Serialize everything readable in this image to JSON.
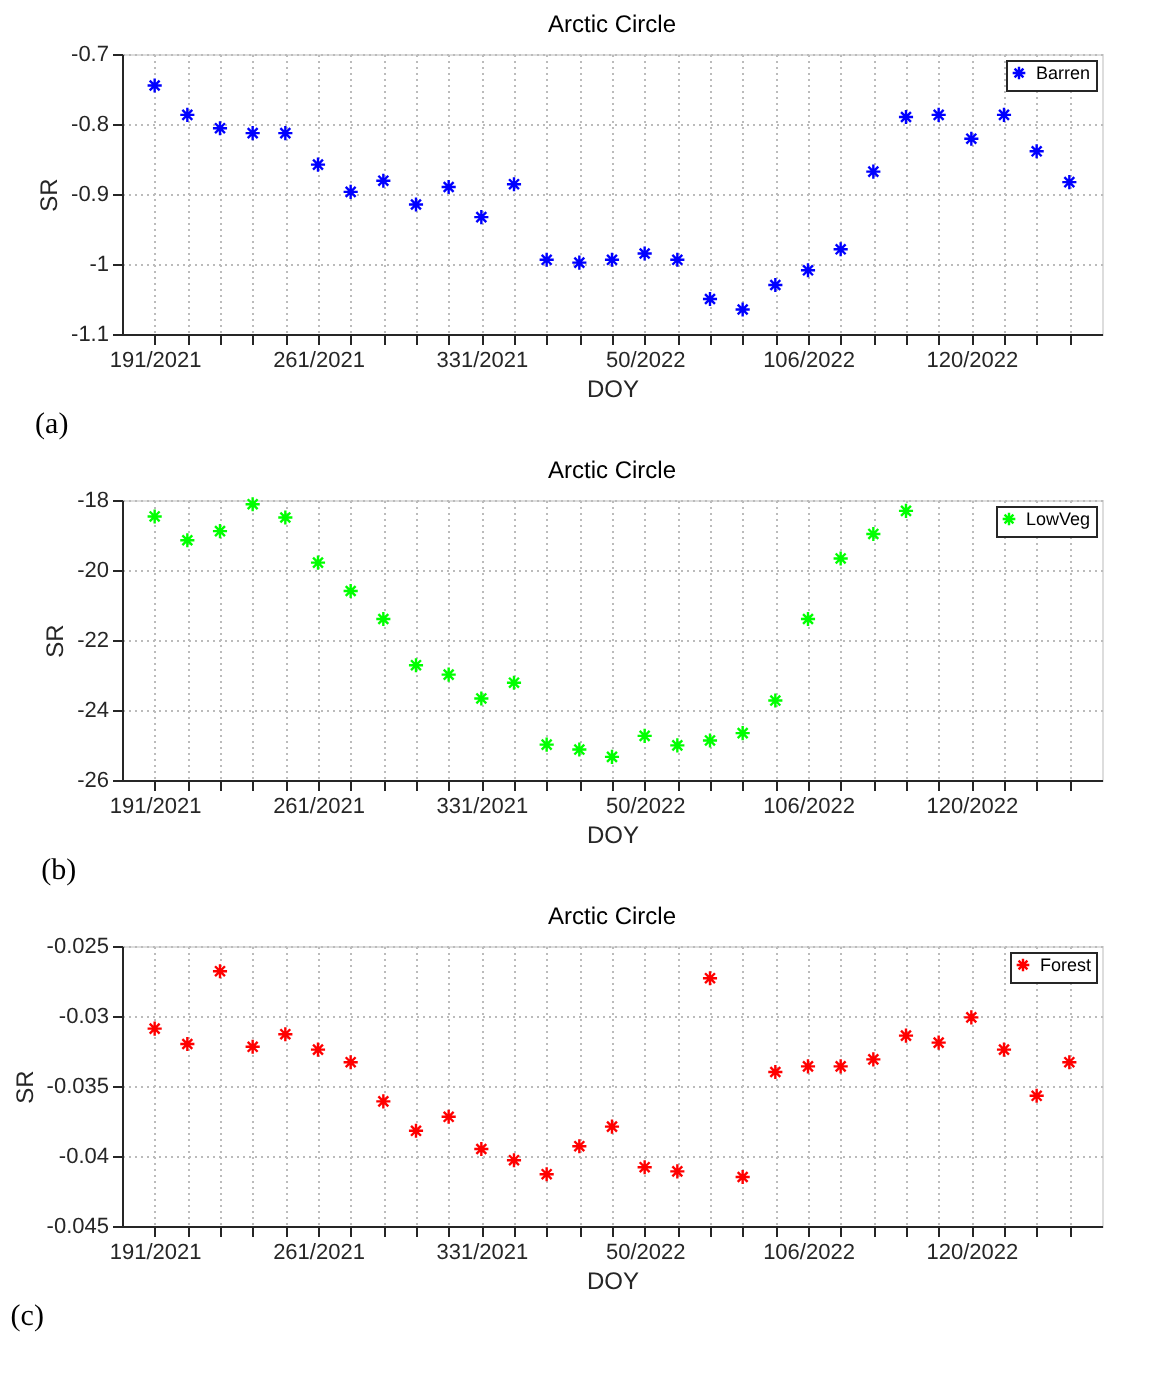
{
  "chart_data": [
    {
      "type": "scatter",
      "title": "Arctic Circle",
      "xlabel": "DOY",
      "ylabel": "SR",
      "annotations": [
        "(a)"
      ],
      "categories": [
        "191/2021",
        null,
        null,
        null,
        null,
        "261/2021",
        null,
        null,
        null,
        null,
        "331/2021",
        null,
        null,
        null,
        null,
        "50/2022",
        null,
        null,
        null,
        null,
        "106/2022",
        null,
        null,
        null,
        null,
        "120/2022",
        null,
        null,
        null
      ],
      "series": [
        {
          "name": "Barren",
          "color": "#0000ff",
          "values": [
            -0.745,
            -0.787,
            -0.806,
            -0.813,
            -0.813,
            -0.858,
            -0.897,
            -0.881,
            -0.915,
            -0.89,
            -0.933,
            -0.886,
            -0.994,
            -0.998,
            -0.994,
            -0.985,
            -0.994,
            -1.05,
            -1.065,
            -1.03,
            -1.009,
            -0.979,
            -0.868,
            -0.79,
            -0.787,
            -0.821,
            -0.787,
            -0.839,
            -0.883
          ]
        }
      ],
      "ylim": [
        -1.1,
        -0.7
      ],
      "yticks": [
        -1.1,
        -1,
        -0.9,
        -0.8,
        -0.7
      ],
      "grid": true,
      "legend": "top right",
      "marker": "cross"
    },
    {
      "type": "scatter",
      "title": "Arctic Circle",
      "xlabel": "DOY",
      "ylabel": "SR",
      "annotations": [
        "(b)"
      ],
      "categories": [
        "191/2021",
        null,
        null,
        null,
        null,
        "261/2021",
        null,
        null,
        null,
        null,
        "331/2021",
        null,
        null,
        null,
        null,
        "50/2022",
        null,
        null,
        null,
        null,
        "106/2022",
        null,
        null,
        null,
        null,
        "120/2022",
        null,
        null,
        null
      ],
      "series": [
        {
          "name": "LowVeg",
          "color": "#00ff00",
          "values": [
            -18.47,
            -19.15,
            -18.89,
            -18.12,
            -18.5,
            -19.79,
            -20.6,
            -21.4,
            -22.72,
            -22.99,
            -23.67,
            -23.22,
            -24.99,
            -25.13,
            -25.34,
            -24.74,
            -25.01,
            -24.87,
            -24.66,
            -23.73,
            -21.4,
            -19.67,
            -18.97,
            -18.31,
            null,
            null,
            null,
            null,
            null
          ]
        }
      ],
      "ylim": [
        -26,
        -18
      ],
      "yticks": [
        -26,
        -24,
        -22,
        -20,
        -18
      ],
      "grid": true,
      "legend": "top right",
      "marker": "cross"
    },
    {
      "type": "scatter",
      "title": "Arctic Circle",
      "xlabel": "DOY",
      "ylabel": "SR",
      "annotations": [
        "(c)"
      ],
      "categories": [
        "191/2021",
        null,
        null,
        null,
        null,
        "261/2021",
        null,
        null,
        null,
        null,
        "331/2021",
        null,
        null,
        null,
        null,
        "50/2022",
        null,
        null,
        null,
        null,
        "106/2022",
        null,
        null,
        null,
        null,
        "120/2022",
        null,
        null,
        null
      ],
      "series": [
        {
          "name": "Forest",
          "color": "#ff0000",
          "values": [
            -0.0309,
            -0.032,
            -0.0268,
            -0.0322,
            -0.0313,
            -0.0324,
            -0.0333,
            -0.0361,
            -0.0382,
            -0.0372,
            -0.0395,
            -0.0403,
            -0.0413,
            -0.0393,
            -0.0379,
            -0.0408,
            -0.0411,
            -0.0273,
            -0.0415,
            -0.034,
            -0.0336,
            -0.0336,
            -0.0331,
            -0.0314,
            -0.0319,
            -0.0301,
            -0.0324,
            -0.0357,
            -0.0333
          ]
        }
      ],
      "ylim": [
        -0.045,
        -0.025
      ],
      "yticks": [
        -0.045,
        -0.04,
        -0.035,
        -0.03,
        -0.025
      ],
      "grid": true,
      "legend": "top right",
      "marker": "cross"
    }
  ]
}
